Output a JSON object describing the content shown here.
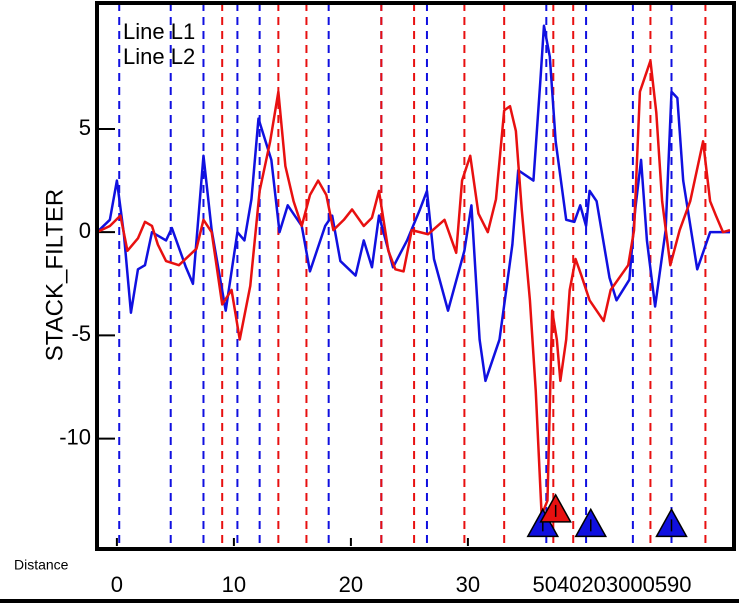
{
  "chart_data": {
    "type": "line",
    "y_label": "STACK_FILTER",
    "x_label": "Distance",
    "overlap_label": "5040203000590",
    "xlim": [
      -1.7,
      52.4
    ],
    "ylim": [
      -15.2,
      11.1
    ],
    "xticks": [
      0,
      10,
      20,
      30
    ],
    "yticks": [
      5,
      0,
      -5,
      -10
    ],
    "series": [
      {
        "name": "Line L1",
        "color": "#1010e0",
        "x": [
          -1.7,
          -0.6,
          0,
          0.6,
          1.2,
          1.8,
          2.4,
          3.0,
          4.2,
          4.7,
          5.9,
          6.5,
          7.4,
          8.1,
          9.3,
          10.3,
          10.9,
          11.5,
          12.1,
          13.2,
          13.9,
          14.6,
          15.8,
          16.5,
          17.8,
          18.4,
          19.1,
          20.4,
          21.1,
          21.8,
          22.4,
          23.6,
          24.8,
          25.9,
          26.5,
          27.1,
          28.3,
          29.7,
          30.3,
          31.0,
          31.5,
          32.7,
          33.8,
          34.3,
          35.6,
          36.2,
          36.5,
          37.0,
          37.5,
          38.4,
          39.1,
          39.6,
          40.1,
          40.4,
          41.0,
          42.1,
          42.7,
          43.8,
          44.3,
          44.8,
          45.3,
          46.0,
          46.9,
          47.4,
          47.9,
          48.4,
          49.6,
          50.7,
          52.4
        ],
        "values": [
          0,
          0.6,
          2.5,
          -0.1,
          -3.9,
          -1.8,
          -1.6,
          0,
          -0.4,
          0.2,
          -1.7,
          -2.5,
          3.7,
          0.1,
          -3.8,
          0,
          -0.4,
          1.6,
          5.5,
          3.5,
          0,
          1.3,
          0.3,
          -1.9,
          0.3,
          0.8,
          -1.4,
          -2.1,
          -0.4,
          -1.7,
          0.8,
          -1.7,
          -0.4,
          1.1,
          2.0,
          -1.3,
          -3.8,
          -0.9,
          1.3,
          -5.2,
          -7.2,
          -5.2,
          -0.6,
          3.0,
          2.5,
          7.4,
          10.0,
          8.5,
          4.4,
          0.6,
          0.5,
          1.3,
          0.3,
          2.0,
          1.5,
          -2.2,
          -3.3,
          -2.3,
          1.1,
          3.5,
          -0.4,
          -3.6,
          0.1,
          6.8,
          6.5,
          2.5,
          -1.8,
          0,
          0
        ],
        "events": [
          0.2,
          4.6,
          7.4,
          10.3,
          12.2,
          18.1,
          22.6,
          26.5,
          36.7,
          40.1,
          44.1,
          47.4
        ],
        "markers": {
          "x": [
            36.4,
            40.5,
            47.4
          ],
          "y": [
            -14.2,
            -14.2,
            -14.2
          ]
        }
      },
      {
        "name": "Line L2",
        "color": "#e81010",
        "x": [
          -1.7,
          -0.6,
          0.3,
          0.9,
          1.8,
          2.4,
          3.0,
          3.5,
          4.2,
          5.3,
          6.8,
          7.4,
          8.1,
          9.0,
          9.8,
          10.5,
          11.4,
          12.2,
          13.1,
          13.8,
          14.4,
          15.1,
          15.8,
          16.5,
          17.2,
          17.9,
          18.5,
          19.4,
          20.1,
          21.1,
          21.8,
          22.4,
          23.2,
          23.8,
          24.5,
          25.2,
          26.6,
          28.0,
          29.0,
          29.5,
          30.2,
          30.9,
          31.7,
          32.4,
          33.1,
          33.6,
          34.1,
          34.6,
          35.3,
          35.8,
          36.3,
          36.8,
          37.2,
          37.6,
          37.9,
          38.4,
          38.7,
          39.2,
          39.7,
          40.4,
          41.6,
          42.2,
          43.7,
          44.2,
          44.7,
          45.6,
          46.1,
          46.6,
          47.3,
          48.1,
          49.0,
          50.1,
          50.7,
          51.2,
          51.8,
          52.4
        ],
        "values": [
          0,
          0.3,
          0.8,
          -0.9,
          -0.3,
          0.5,
          0.3,
          -0.6,
          -1.4,
          -1.6,
          -0.8,
          0.6,
          0,
          -3.5,
          -2.8,
          -5.2,
          -2.6,
          2.0,
          4.4,
          6.8,
          3.2,
          1.5,
          0.3,
          1.8,
          2.5,
          1.8,
          0.1,
          0.6,
          1.1,
          0.3,
          0.7,
          2.0,
          -0.9,
          -1.8,
          -1.9,
          0.1,
          -0.1,
          0.6,
          -1.0,
          2.5,
          3.7,
          0.9,
          0,
          1.6,
          5.9,
          6.1,
          4.9,
          1.1,
          -3.3,
          -7.7,
          -13.7,
          -13.0,
          -3.8,
          -5.2,
          -7.2,
          -5.2,
          -2.8,
          -1.3,
          -2.1,
          -3.3,
          -4.3,
          -2.8,
          -1.6,
          0.1,
          6.8,
          8.3,
          5.8,
          1.5,
          -1.6,
          0.1,
          1.5,
          4.4,
          1.5,
          0.8,
          0,
          0.1
        ],
        "events": [
          9.0,
          13.8,
          16.2,
          22.6,
          25.4,
          29.7,
          33.1,
          37.3,
          39.0,
          45.6,
          50.3
        ],
        "markers": {
          "x": [
            37.5
          ],
          "y": [
            -13.5
          ]
        }
      }
    ]
  }
}
